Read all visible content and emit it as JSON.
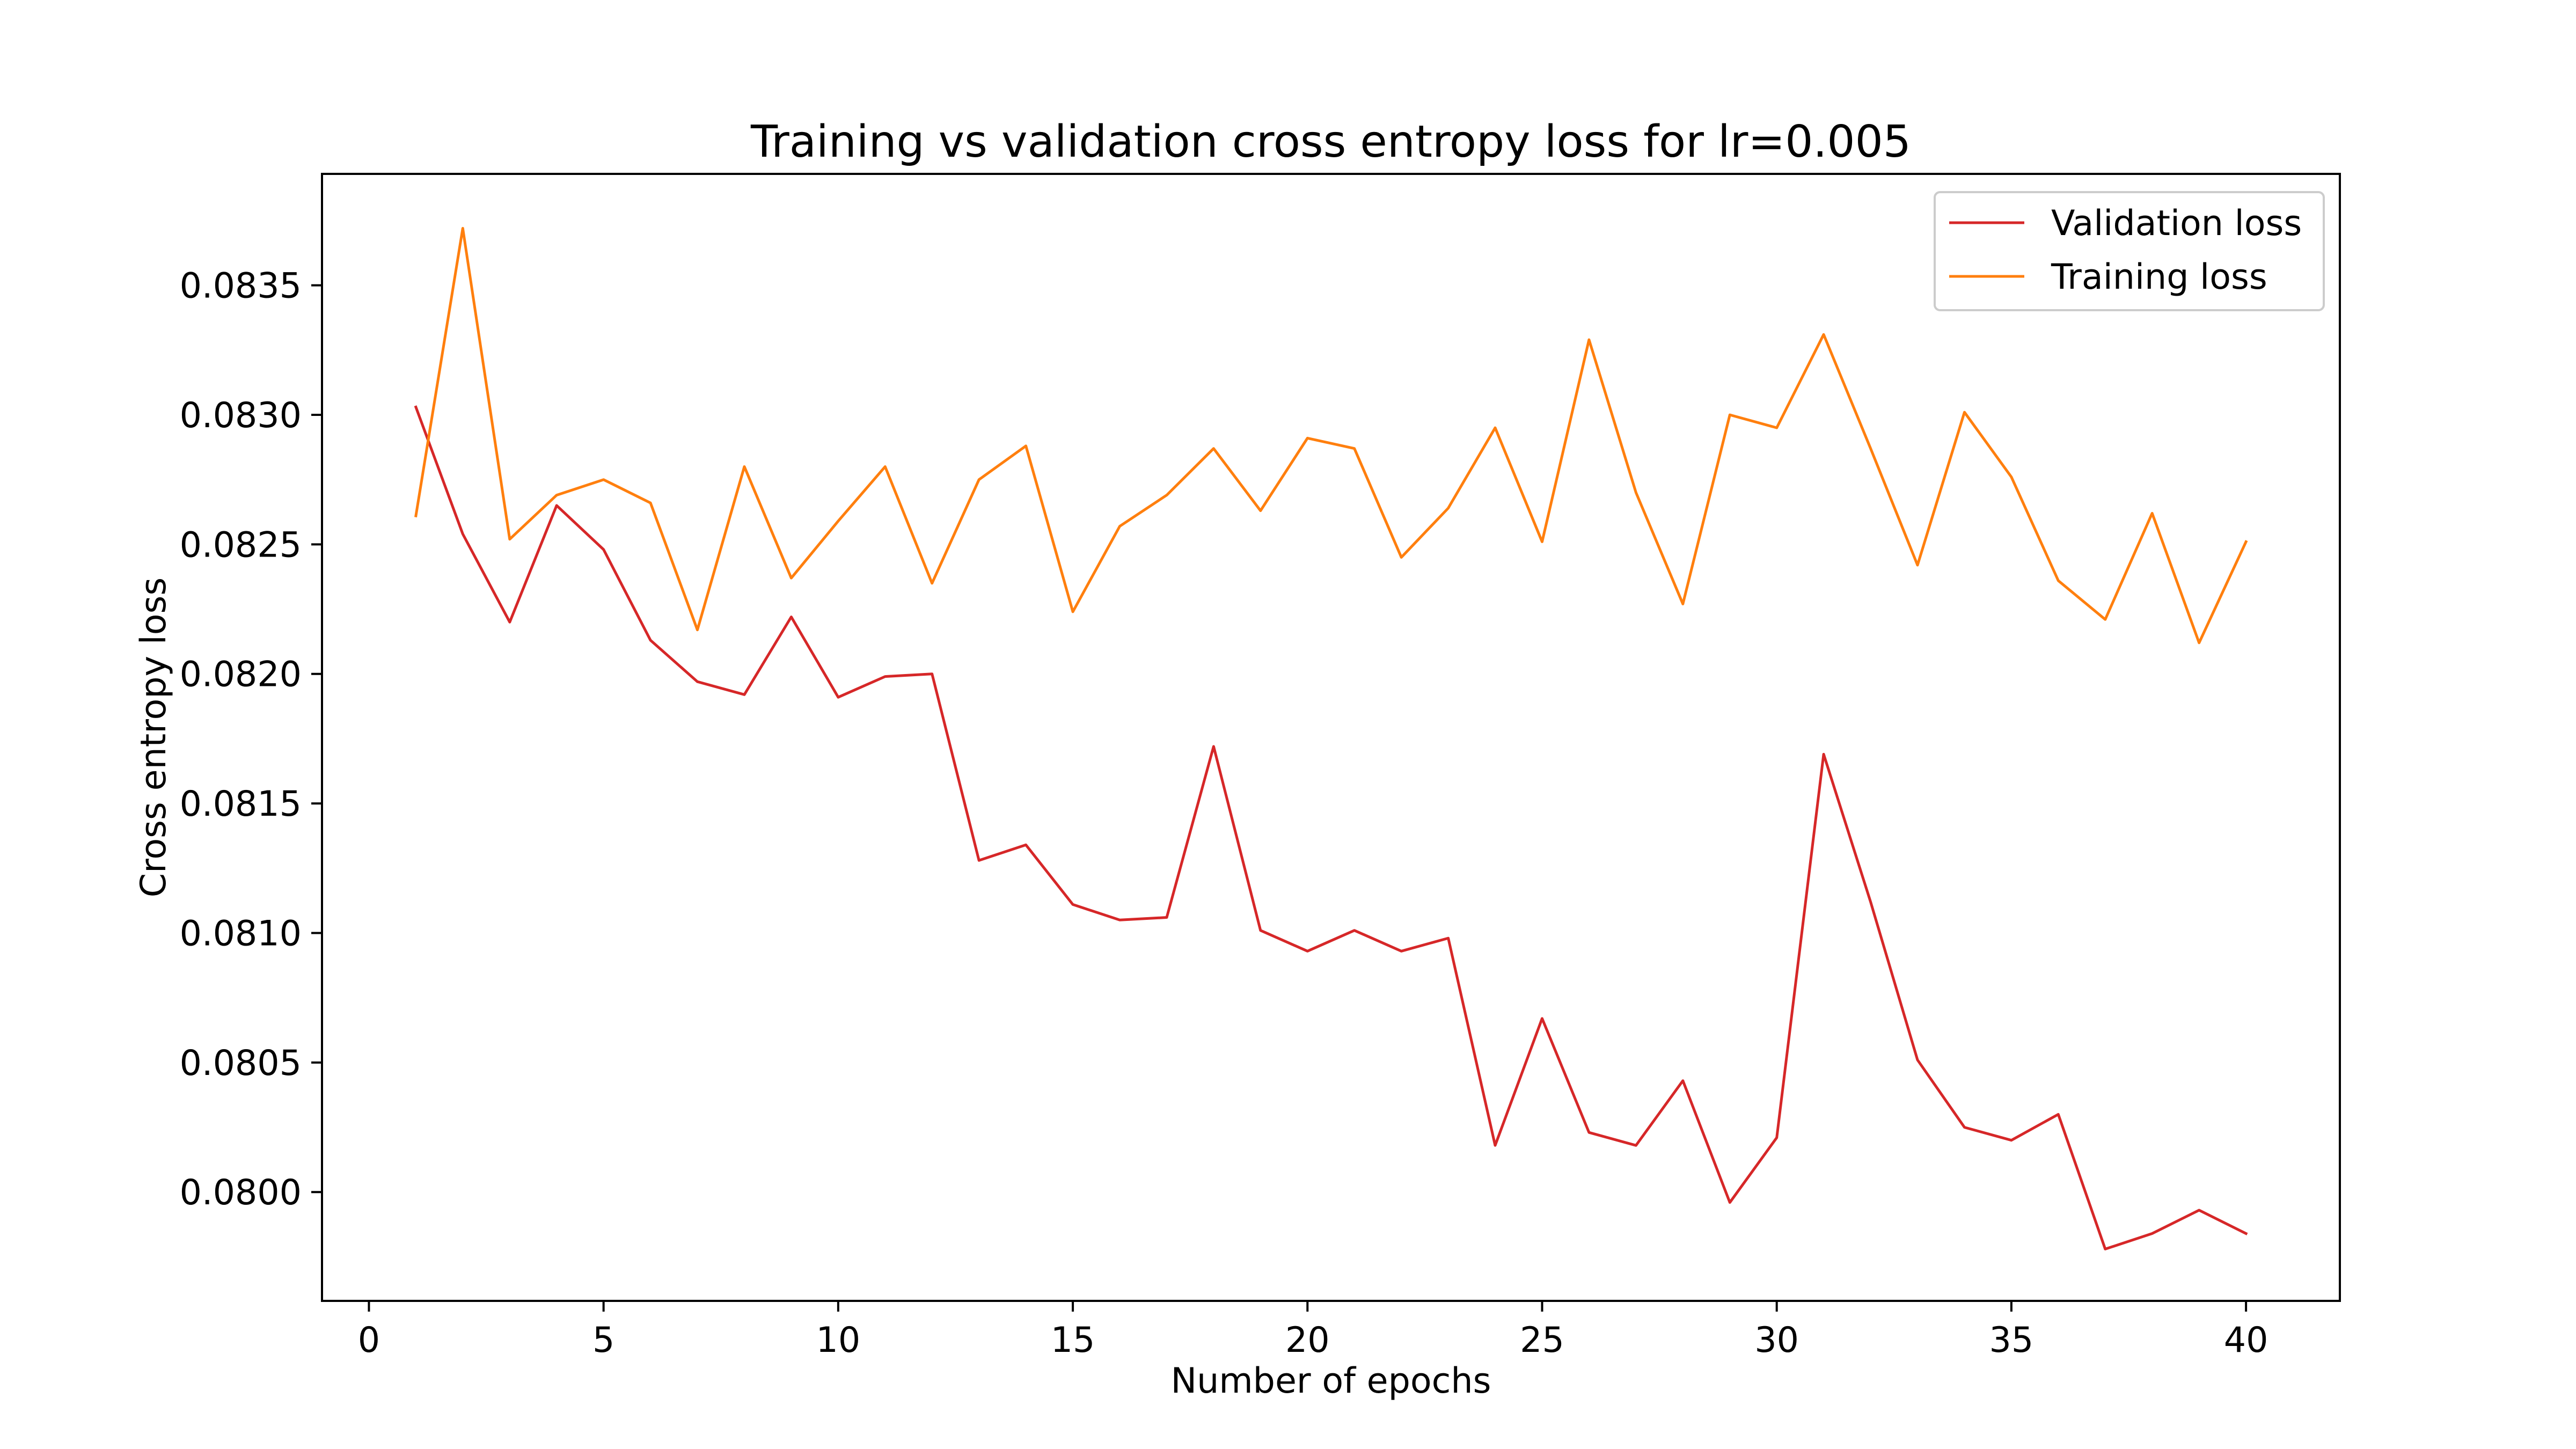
{
  "chart_data": {
    "type": "line",
    "title": "Training vs validation cross entropy loss for lr=0.005",
    "xlabel": "Number of epochs",
    "ylabel": "Cross entropy loss",
    "xlim": [
      -1,
      42
    ],
    "ylim": [
      0.07958,
      0.08393
    ],
    "xticks": [
      0,
      5,
      10,
      15,
      20,
      25,
      30,
      35,
      40
    ],
    "xtick_labels": [
      "0",
      "5",
      "10",
      "15",
      "20",
      "25",
      "30",
      "35",
      "40"
    ],
    "yticks": [
      0.08,
      0.0805,
      0.081,
      0.0815,
      0.082,
      0.0825,
      0.083,
      0.0835
    ],
    "ytick_labels": [
      "0.0800",
      "0.0805",
      "0.0810",
      "0.0815",
      "0.0820",
      "0.0825",
      "0.0830",
      "0.0835"
    ],
    "grid": false,
    "legend_position": "top-right",
    "x": [
      1,
      2,
      3,
      4,
      5,
      6,
      7,
      8,
      9,
      10,
      11,
      12,
      13,
      14,
      15,
      16,
      17,
      18,
      19,
      20,
      21,
      22,
      23,
      24,
      25,
      26,
      27,
      28,
      29,
      30,
      31,
      32,
      33,
      34,
      35,
      36,
      37,
      38,
      39,
      40
    ],
    "series": [
      {
        "name": "Validation loss",
        "color": "#d62728",
        "values": [
          0.08303,
          0.08254,
          0.0822,
          0.08265,
          0.08248,
          0.08213,
          0.08197,
          0.08192,
          0.08222,
          0.08191,
          0.08199,
          0.082,
          0.08128,
          0.08134,
          0.08111,
          0.08105,
          0.08106,
          0.08172,
          0.08101,
          0.08093,
          0.08101,
          0.08093,
          0.08098,
          0.08018,
          0.08067,
          0.08023,
          0.08018,
          0.08043,
          0.07996,
          0.08021,
          0.08169,
          0.08112,
          0.08051,
          0.08025,
          0.0802,
          0.0803,
          0.07978,
          0.07984,
          0.07993,
          0.07984
        ]
      },
      {
        "name": "Training loss",
        "color": "#ff7f0e",
        "values": [
          0.08261,
          0.08372,
          0.08252,
          0.08269,
          0.08275,
          0.08266,
          0.08217,
          0.0828,
          0.08237,
          0.08259,
          0.0828,
          0.08235,
          0.08275,
          0.08288,
          0.08224,
          0.08257,
          0.08269,
          0.08287,
          0.08263,
          0.08291,
          0.08287,
          0.08245,
          0.08264,
          0.08295,
          0.08251,
          0.08329,
          0.0827,
          0.08227,
          0.083,
          0.08295,
          0.08331,
          0.08287,
          0.08242,
          0.08301,
          0.08276,
          0.08236,
          0.08221,
          0.08262,
          0.08212,
          0.08251
        ]
      }
    ]
  }
}
